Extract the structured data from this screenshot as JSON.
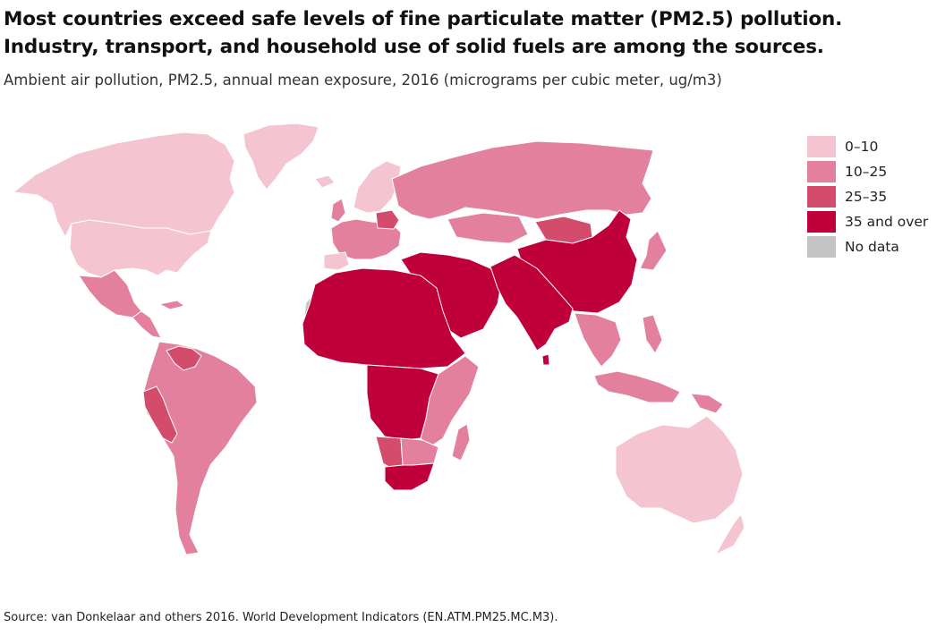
{
  "title": {
    "line1": "Most countries exceed safe levels of fine particulate matter (PM2.5) pollution.",
    "line2": "Industry, transport, and household use of solid fuels are among the sources."
  },
  "subtitle": "Ambient air pollution, PM2.5, annual mean exposure, 2016 (micrograms per cubic meter, ug/m3)",
  "legend": [
    {
      "label": "0–10",
      "color": "#f4c4d0"
    },
    {
      "label": "10–25",
      "color": "#e2809e"
    },
    {
      "label": "25–35",
      "color": "#d34c6b"
    },
    {
      "label": "35 and over",
      "color": "#c0003a"
    },
    {
      "label": "No data",
      "color": "#c4c4c4"
    }
  ],
  "map": {
    "regions": [
      {
        "name": "Canada and Alaska",
        "bin": "0–10"
      },
      {
        "name": "United States",
        "bin": "0–10"
      },
      {
        "name": "Greenland",
        "bin": "0–10"
      },
      {
        "name": "Nordic countries",
        "bin": "0–10"
      },
      {
        "name": "Iberia",
        "bin": "0–10"
      },
      {
        "name": "Australia",
        "bin": "0–10"
      },
      {
        "name": "New Zealand",
        "bin": "0–10"
      },
      {
        "name": "Mexico and Central America",
        "bin": "10–25"
      },
      {
        "name": "South America",
        "bin": "10–25"
      },
      {
        "name": "Western Europe",
        "bin": "10–25"
      },
      {
        "name": "Russia",
        "bin": "10–25"
      },
      {
        "name": "Kazakhstan and Central Asia",
        "bin": "10–25"
      },
      {
        "name": "Japan",
        "bin": "10–25"
      },
      {
        "name": "Southeast Asia",
        "bin": "10–25"
      },
      {
        "name": "Indonesia",
        "bin": "10–25"
      },
      {
        "name": "Papua New Guinea",
        "bin": "10–25"
      },
      {
        "name": "Madagascar",
        "bin": "10–25"
      },
      {
        "name": "East and southern Africa",
        "bin": "10–25"
      },
      {
        "name": "Peru",
        "bin": "25–35"
      },
      {
        "name": "Venezuela",
        "bin": "25–35"
      },
      {
        "name": "Poland",
        "bin": "25–35"
      },
      {
        "name": "Mongolia",
        "bin": "25–35"
      },
      {
        "name": "Namibia",
        "bin": "25–35"
      },
      {
        "name": "North Africa and Sahel",
        "bin": "35 and over"
      },
      {
        "name": "Central Africa",
        "bin": "35 and over"
      },
      {
        "name": "South Africa",
        "bin": "35 and over"
      },
      {
        "name": "Middle East",
        "bin": "35 and over"
      },
      {
        "name": "South Asia",
        "bin": "35 and over"
      },
      {
        "name": "China",
        "bin": "35 and over"
      },
      {
        "name": "Western Sahara",
        "bin": "No data"
      }
    ]
  },
  "source": "Source: van Donkelaar and others 2016. World Development Indicators (EN.ATM.PM25.MC.M3)."
}
